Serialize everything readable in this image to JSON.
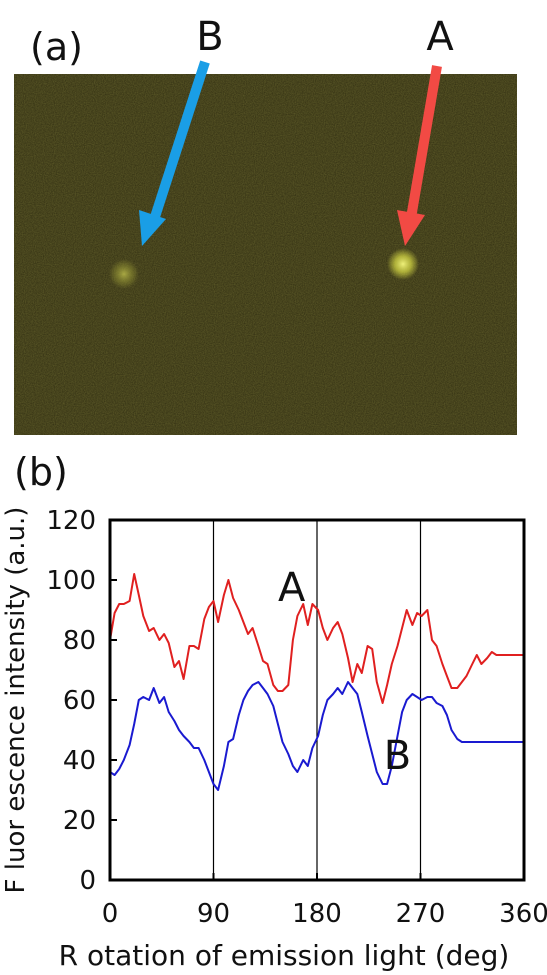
{
  "panel_a": {
    "label": "(a)",
    "marker_a": "A",
    "marker_b": "B",
    "colors": {
      "background": "#2e2b10",
      "arrow_a": "#f24a44",
      "arrow_b": "#1a9ee6",
      "spot": "#d8da52"
    }
  },
  "panel_b": {
    "label": "(b)"
  },
  "chart_data": {
    "type": "line",
    "title": "",
    "xlabel": "R otation of emission light (deg)",
    "ylabel": "F luor escence intensity (a.u.)",
    "xlim": [
      0,
      360
    ],
    "ylim": [
      0,
      120
    ],
    "xticks": [
      0,
      90,
      180,
      270,
      360
    ],
    "yticks": [
      0,
      20,
      40,
      60,
      80,
      100,
      120
    ],
    "vlines": [
      90,
      180,
      270
    ],
    "grid": false,
    "series": [
      {
        "name": "A",
        "color": "#e02020",
        "x": [
          0,
          4,
          8,
          12,
          17,
          21,
          25,
          29,
          34,
          38,
          43,
          47,
          51,
          56,
          60,
          64,
          69,
          73,
          77,
          82,
          86,
          90,
          94,
          99,
          103,
          107,
          112,
          116,
          120,
          124,
          129,
          133,
          137,
          142,
          146,
          150,
          155,
          159,
          163,
          168,
          172,
          176,
          181,
          185,
          189,
          194,
          198,
          202,
          207,
          211,
          215,
          219,
          224,
          228,
          232,
          237,
          241,
          245,
          250,
          254,
          258,
          263,
          267,
          271,
          276,
          280,
          284,
          289,
          293,
          297,
          302,
          306,
          310,
          315,
          319,
          323,
          328,
          332,
          336,
          341,
          345,
          349,
          354,
          358,
          360
        ],
        "y": [
          80,
          89,
          92,
          92,
          93,
          102,
          95,
          88,
          83,
          84,
          80,
          82,
          79,
          71,
          73,
          67,
          78,
          78,
          77,
          87,
          91,
          93,
          86,
          95,
          100,
          94,
          90,
          86,
          82,
          84,
          78,
          73,
          72,
          65,
          63,
          63,
          65,
          80,
          88,
          92,
          85,
          92,
          90,
          84,
          80,
          84,
          86,
          82,
          74,
          66,
          72,
          69,
          78,
          77,
          66,
          59,
          65,
          72,
          78,
          84,
          90,
          85,
          89,
          88,
          90,
          80,
          78,
          72,
          68,
          64,
          64,
          66,
          68,
          72,
          75,
          72,
          74,
          76,
          75,
          75,
          75,
          75,
          75,
          75,
          75
        ]
      },
      {
        "name": "B",
        "color": "#1a1ad0",
        "x": [
          0,
          4,
          8,
          12,
          17,
          21,
          25,
          29,
          34,
          38,
          43,
          47,
          51,
          56,
          60,
          64,
          69,
          73,
          77,
          82,
          86,
          90,
          94,
          99,
          103,
          107,
          112,
          116,
          120,
          124,
          129,
          133,
          137,
          142,
          146,
          150,
          155,
          159,
          163,
          168,
          172,
          176,
          181,
          185,
          189,
          194,
          198,
          202,
          207,
          211,
          215,
          219,
          224,
          228,
          232,
          237,
          241,
          245,
          250,
          254,
          258,
          263,
          267,
          271,
          276,
          280,
          284,
          289,
          293,
          297,
          302,
          306,
          310,
          315,
          319,
          323,
          328,
          332,
          336,
          341,
          345,
          349,
          354,
          358,
          360
        ],
        "y": [
          36,
          35,
          37,
          40,
          45,
          52,
          60,
          61,
          60,
          64,
          59,
          61,
          56,
          53,
          50,
          48,
          46,
          44,
          44,
          40,
          36,
          32,
          30,
          38,
          46,
          47,
          55,
          60,
          63,
          65,
          66,
          64,
          62,
          58,
          52,
          46,
          42,
          38,
          36,
          40,
          38,
          44,
          48,
          55,
          60,
          62,
          64,
          62,
          66,
          64,
          62,
          56,
          48,
          42,
          36,
          32,
          32,
          38,
          48,
          56,
          60,
          62,
          61,
          60,
          61,
          61,
          59,
          58,
          55,
          50,
          47,
          46,
          46,
          46,
          46,
          46,
          46,
          46,
          46,
          46,
          46,
          46,
          46,
          46,
          46
        ]
      }
    ],
    "annotations": [
      {
        "text": "A",
        "x": 158,
        "y": 93
      },
      {
        "text": "B",
        "x": 250,
        "y": 37
      }
    ]
  }
}
